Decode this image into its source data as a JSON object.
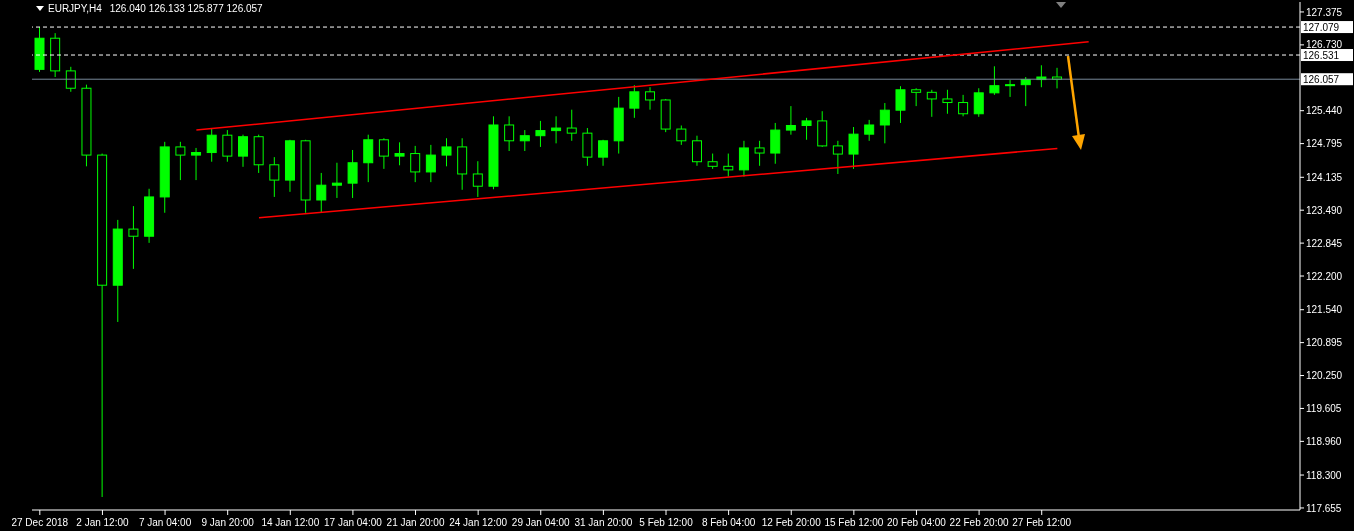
{
  "chart_data": {
    "type": "candlestick",
    "title": "EURJPY,H4",
    "subtitle": "126.040 126.133 125.877 126.057",
    "color": "#00ff00",
    "categories": [
      "27 Dec 2018",
      null,
      null,
      null,
      "2 Jan 12:00",
      null,
      null,
      null,
      "7 Jan 04:00",
      null,
      null,
      null,
      "9 Jan 20:00",
      null,
      null,
      null,
      "14 Jan 12:00",
      null,
      null,
      null,
      "17 Jan 04:00",
      null,
      null,
      null,
      "21 Jan 20:00",
      null,
      null,
      null,
      "24 Jan 12:00",
      null,
      null,
      null,
      "29 Jan 04:00",
      null,
      null,
      null,
      "31 Jan 20:00",
      null,
      null,
      null,
      "5 Feb 12:00",
      null,
      null,
      null,
      "8 Feb 04:00",
      null,
      null,
      null,
      "12 Feb 20:00",
      null,
      null,
      null,
      "15 Feb 12:00",
      null,
      null,
      null,
      "20 Feb 04:00",
      null,
      null,
      null,
      "22 Feb 20:00",
      null,
      null,
      null,
      "27 Feb 12:00",
      null,
      null,
      null,
      null,
      null,
      null,
      null,
      null,
      null,
      null,
      null,
      null,
      null,
      null,
      null,
      null
    ],
    "ohlc": [
      [
        126.25,
        127.08,
        126.2,
        126.86
      ],
      [
        126.86,
        126.96,
        126.1,
        126.22
      ],
      [
        126.22,
        126.3,
        125.81,
        125.88
      ],
      [
        125.88,
        125.95,
        124.35,
        124.57
      ],
      [
        124.57,
        124.6,
        117.87,
        122.02
      ],
      [
        122.02,
        123.3,
        121.3,
        123.12
      ],
      [
        123.12,
        123.57,
        122.34,
        122.98
      ],
      [
        122.98,
        123.91,
        122.85,
        123.75
      ],
      [
        123.75,
        124.83,
        123.44,
        124.73
      ],
      [
        124.73,
        124.83,
        124.08,
        124.57
      ],
      [
        124.57,
        124.71,
        124.08,
        124.62
      ],
      [
        124.62,
        125.08,
        124.44,
        124.96
      ],
      [
        124.96,
        125.06,
        124.44,
        124.55
      ],
      [
        124.55,
        124.97,
        124.34,
        124.93
      ],
      [
        124.93,
        124.97,
        124.22,
        124.38
      ],
      [
        124.38,
        124.53,
        123.75,
        124.08
      ],
      [
        124.08,
        124.87,
        123.85,
        124.85
      ],
      [
        124.85,
        124.87,
        123.44,
        123.69
      ],
      [
        123.69,
        124.22,
        123.44,
        123.98
      ],
      [
        123.98,
        124.42,
        123.73,
        124.02
      ],
      [
        124.02,
        124.67,
        123.73,
        124.42
      ],
      [
        124.42,
        124.97,
        124.04,
        124.87
      ],
      [
        124.87,
        124.9,
        124.3,
        124.55
      ],
      [
        124.55,
        124.82,
        124.37,
        124.6
      ],
      [
        124.6,
        124.75,
        124.04,
        124.24
      ],
      [
        124.24,
        124.77,
        124.04,
        124.57
      ],
      [
        124.57,
        124.9,
        124.35,
        124.73
      ],
      [
        124.73,
        124.9,
        123.89,
        124.2
      ],
      [
        124.2,
        124.45,
        123.75,
        123.96
      ],
      [
        123.96,
        125.33,
        123.9,
        125.16
      ],
      [
        125.16,
        125.33,
        124.65,
        124.85
      ],
      [
        124.85,
        125.06,
        124.65,
        124.95
      ],
      [
        124.95,
        125.24,
        124.73,
        125.05
      ],
      [
        125.05,
        125.33,
        124.8,
        125.1
      ],
      [
        125.1,
        125.46,
        124.85,
        125.0
      ],
      [
        125.0,
        125.1,
        124.36,
        124.53
      ],
      [
        124.53,
        124.87,
        124.36,
        124.85
      ],
      [
        124.85,
        125.71,
        124.6,
        125.49
      ],
      [
        125.49,
        125.94,
        125.3,
        125.81
      ],
      [
        125.81,
        125.9,
        125.46,
        125.65
      ],
      [
        125.65,
        125.67,
        125.02,
        125.08
      ],
      [
        125.08,
        125.15,
        124.77,
        124.85
      ],
      [
        124.85,
        124.95,
        124.36,
        124.44
      ],
      [
        124.44,
        124.6,
        124.3,
        124.35
      ],
      [
        124.35,
        124.6,
        124.15,
        124.28
      ],
      [
        124.28,
        124.85,
        124.15,
        124.71
      ],
      [
        124.71,
        124.85,
        124.36,
        124.61
      ],
      [
        124.61,
        125.2,
        124.4,
        125.06
      ],
      [
        125.06,
        125.53,
        124.97,
        125.15
      ],
      [
        125.15,
        125.3,
        124.87,
        125.24
      ],
      [
        125.24,
        125.43,
        124.73,
        124.75
      ],
      [
        124.75,
        124.85,
        124.2,
        124.59
      ],
      [
        124.59,
        125.12,
        124.3,
        124.98
      ],
      [
        124.98,
        125.26,
        124.85,
        125.16
      ],
      [
        125.16,
        125.59,
        124.8,
        125.45
      ],
      [
        125.45,
        125.92,
        125.2,
        125.85
      ],
      [
        125.85,
        125.88,
        125.53,
        125.8
      ],
      [
        125.8,
        125.85,
        125.32,
        125.67
      ],
      [
        125.67,
        125.85,
        125.38,
        125.6
      ],
      [
        125.6,
        125.75,
        125.33,
        125.38
      ],
      [
        125.38,
        125.88,
        125.32,
        125.79
      ],
      [
        125.79,
        126.31,
        125.75,
        125.93
      ],
      [
        125.93,
        126.04,
        125.71,
        125.95
      ],
      [
        125.95,
        126.1,
        125.53,
        126.05
      ],
      [
        126.05,
        126.33,
        125.9,
        126.1
      ],
      [
        126.1,
        126.28,
        125.877,
        126.057
      ],
      null,
      null,
      null,
      null,
      null,
      null,
      null,
      null,
      null,
      null,
      null,
      null,
      null,
      null,
      null
    ],
    "series": [
      {
        "type": "line",
        "color": "#ff0000",
        "values": [
          null,
          null,
          null,
          null,
          null,
          null,
          null,
          null,
          null,
          null,
          125.06,
          null,
          null,
          null,
          null,
          null,
          null,
          null,
          null,
          null,
          null,
          null,
          null,
          null,
          null,
          null,
          null,
          null,
          null,
          null,
          null,
          null,
          null,
          null,
          null,
          null,
          null,
          null,
          null,
          null,
          null,
          null,
          null,
          null,
          null,
          null,
          null,
          null,
          null,
          null,
          null,
          null,
          null,
          null,
          null,
          null,
          null,
          null,
          null,
          null,
          null,
          null,
          null,
          null,
          null,
          null,
          null,
          126.79,
          null,
          null,
          null,
          null,
          null,
          null,
          null,
          null,
          null,
          null,
          null,
          null,
          null
        ]
      },
      {
        "type": "line",
        "color": "#ff0000",
        "values": [
          null,
          null,
          null,
          null,
          null,
          null,
          null,
          null,
          null,
          null,
          null,
          null,
          null,
          null,
          123.34,
          null,
          null,
          null,
          null,
          null,
          null,
          null,
          null,
          null,
          null,
          null,
          null,
          null,
          null,
          null,
          null,
          null,
          null,
          null,
          null,
          null,
          null,
          null,
          null,
          null,
          null,
          null,
          null,
          null,
          null,
          null,
          null,
          null,
          null,
          null,
          null,
          null,
          null,
          null,
          null,
          null,
          null,
          null,
          null,
          null,
          null,
          null,
          null,
          null,
          null,
          124.7,
          null,
          null,
          null,
          null,
          null,
          null,
          null,
          null,
          null,
          null,
          null,
          null,
          null,
          null,
          null
        ]
      }
    ],
    "ylim": [
      117.615,
      127.57
    ],
    "yticks": [
      117.655,
      {
        "value": 118.3,
        "label": "118.300"
      },
      {
        "value": 118.96,
        "label": "118.960"
      },
      119.605,
      {
        "value": 120.25,
        "label": "120.250"
      },
      120.895,
      {
        "value": 121.54,
        "label": "121.540"
      },
      {
        "value": 122.2,
        "label": "122.200"
      },
      122.845,
      {
        "value": 123.49,
        "label": "123.490"
      },
      124.135,
      124.795,
      {
        "value": 125.44,
        "label": "125.440"
      },
      {
        "value": 126.73,
        "label": "126.730"
      },
      127.375
    ],
    "ref_lines": [
      {
        "axis": "y",
        "value": 127.079,
        "label": "127.079",
        "color": "#ffffff",
        "line_style": "dashed"
      },
      {
        "axis": "y",
        "value": 126.531,
        "label": "126.531",
        "color": "#ffffff",
        "line_style": "dashed"
      },
      {
        "axis": "y",
        "value": 126.057,
        "label": "126.057",
        "color": "#778899",
        "line_style": "solid"
      }
    ]
  }
}
